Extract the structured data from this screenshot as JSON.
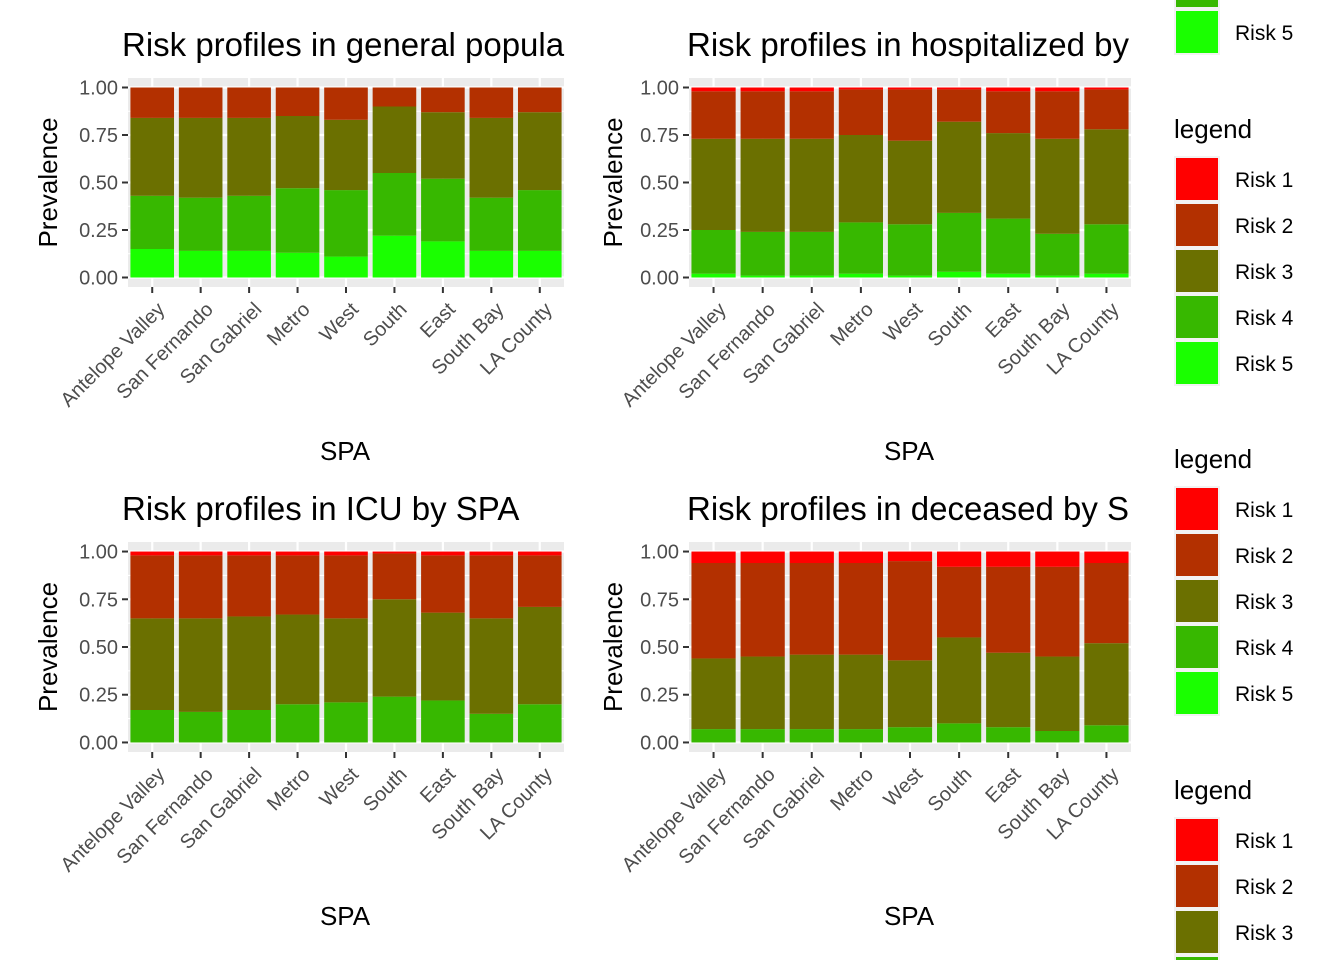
{
  "legend": {
    "title": "legend",
    "items": [
      "Risk 1",
      "Risk 2",
      "Risk 3",
      "Risk 4",
      "Risk 5"
    ],
    "colors": [
      "#ff0000",
      "#b33000",
      "#6b7000",
      "#37b800",
      "#1aff00"
    ]
  },
  "chart_data": [
    {
      "type": "bar",
      "stacked": true,
      "title": "Risk profiles in general popula",
      "xlabel": "SPA",
      "ylabel": "Prevalence",
      "ylim": [
        0,
        1
      ],
      "yticks": [
        "0.00",
        "0.25",
        "0.50",
        "0.75",
        "1.00"
      ],
      "categories": [
        "Antelope Valley",
        "San Fernando",
        "San Gabriel",
        "Metro",
        "West",
        "South",
        "East",
        "South Bay",
        "LA County"
      ],
      "series": [
        {
          "name": "Risk 1",
          "values": [
            0.0,
            0.0,
            0.0,
            0.0,
            0.0,
            0.0,
            0.0,
            0.0,
            0.0
          ]
        },
        {
          "name": "Risk 2",
          "values": [
            0.16,
            0.16,
            0.16,
            0.15,
            0.17,
            0.1,
            0.13,
            0.16,
            0.13
          ]
        },
        {
          "name": "Risk 3",
          "values": [
            0.41,
            0.42,
            0.41,
            0.38,
            0.37,
            0.35,
            0.35,
            0.42,
            0.41
          ]
        },
        {
          "name": "Risk 4",
          "values": [
            0.28,
            0.28,
            0.29,
            0.34,
            0.35,
            0.33,
            0.33,
            0.28,
            0.32
          ]
        },
        {
          "name": "Risk 5",
          "values": [
            0.15,
            0.14,
            0.14,
            0.13,
            0.11,
            0.22,
            0.19,
            0.14,
            0.14
          ]
        }
      ]
    },
    {
      "type": "bar",
      "stacked": true,
      "title": "Risk profiles in hospitalized by",
      "xlabel": "SPA",
      "ylabel": "Prevalence",
      "ylim": [
        0,
        1
      ],
      "yticks": [
        "0.00",
        "0.25",
        "0.50",
        "0.75",
        "1.00"
      ],
      "categories": [
        "Antelope Valley",
        "San Fernando",
        "San Gabriel",
        "Metro",
        "West",
        "South",
        "East",
        "South Bay",
        "LA County"
      ],
      "series": [
        {
          "name": "Risk 1",
          "values": [
            0.02,
            0.02,
            0.02,
            0.01,
            0.01,
            0.01,
            0.02,
            0.02,
            0.01
          ]
        },
        {
          "name": "Risk 2",
          "values": [
            0.25,
            0.25,
            0.25,
            0.24,
            0.27,
            0.17,
            0.22,
            0.25,
            0.21
          ]
        },
        {
          "name": "Risk 3",
          "values": [
            0.48,
            0.49,
            0.49,
            0.46,
            0.44,
            0.48,
            0.45,
            0.5,
            0.5
          ]
        },
        {
          "name": "Risk 4",
          "values": [
            0.23,
            0.23,
            0.23,
            0.27,
            0.27,
            0.31,
            0.29,
            0.22,
            0.26
          ]
        },
        {
          "name": "Risk 5",
          "values": [
            0.02,
            0.01,
            0.01,
            0.02,
            0.01,
            0.03,
            0.02,
            0.01,
            0.02
          ]
        }
      ]
    },
    {
      "type": "bar",
      "stacked": true,
      "title": "Risk profiles in ICU by SPA",
      "xlabel": "SPA",
      "ylabel": "Prevalence",
      "ylim": [
        0,
        1
      ],
      "yticks": [
        "0.00",
        "0.25",
        "0.50",
        "0.75",
        "1.00"
      ],
      "categories": [
        "Antelope Valley",
        "San Fernando",
        "San Gabriel",
        "Metro",
        "West",
        "South",
        "East",
        "South Bay",
        "LA County"
      ],
      "series": [
        {
          "name": "Risk 1",
          "values": [
            0.02,
            0.02,
            0.02,
            0.02,
            0.02,
            0.01,
            0.02,
            0.02,
            0.02
          ]
        },
        {
          "name": "Risk 2",
          "values": [
            0.33,
            0.33,
            0.32,
            0.31,
            0.33,
            0.24,
            0.3,
            0.33,
            0.27
          ]
        },
        {
          "name": "Risk 3",
          "values": [
            0.48,
            0.49,
            0.49,
            0.47,
            0.44,
            0.51,
            0.46,
            0.5,
            0.51
          ]
        },
        {
          "name": "Risk 4",
          "values": [
            0.17,
            0.16,
            0.17,
            0.2,
            0.21,
            0.24,
            0.22,
            0.15,
            0.2
          ]
        },
        {
          "name": "Risk 5",
          "values": [
            0.0,
            0.0,
            0.0,
            0.0,
            0.0,
            0.0,
            0.0,
            0.0,
            0.0
          ]
        }
      ]
    },
    {
      "type": "bar",
      "stacked": true,
      "title": "Risk profiles in deceased by S",
      "xlabel": "SPA",
      "ylabel": "Prevalence",
      "ylim": [
        0,
        1
      ],
      "yticks": [
        "0.00",
        "0.25",
        "0.50",
        "0.75",
        "1.00"
      ],
      "categories": [
        "Antelope Valley",
        "San Fernando",
        "San Gabriel",
        "Metro",
        "West",
        "South",
        "East",
        "South Bay",
        "LA County"
      ],
      "series": [
        {
          "name": "Risk 1",
          "values": [
            0.06,
            0.06,
            0.06,
            0.06,
            0.05,
            0.08,
            0.08,
            0.08,
            0.06
          ]
        },
        {
          "name": "Risk 2",
          "values": [
            0.5,
            0.49,
            0.48,
            0.48,
            0.52,
            0.37,
            0.45,
            0.47,
            0.42
          ]
        },
        {
          "name": "Risk 3",
          "values": [
            0.37,
            0.38,
            0.39,
            0.39,
            0.35,
            0.45,
            0.39,
            0.39,
            0.43
          ]
        },
        {
          "name": "Risk 4",
          "values": [
            0.07,
            0.07,
            0.07,
            0.07,
            0.08,
            0.1,
            0.08,
            0.06,
            0.09
          ]
        },
        {
          "name": "Risk 5",
          "values": [
            0.0,
            0.0,
            0.0,
            0.0,
            0.0,
            0.0,
            0.0,
            0.0,
            0.0
          ]
        }
      ]
    }
  ]
}
